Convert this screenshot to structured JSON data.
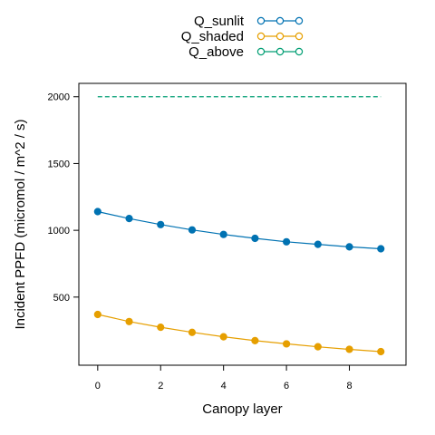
{
  "chart_data": {
    "type": "line",
    "xlabel": "Canopy layer",
    "ylabel": "Incident PPFD (micromol / m^2 / s)",
    "xlim": [
      -0.6,
      9.8
    ],
    "ylim": [
      -10,
      2100
    ],
    "xticks": [
      0,
      2,
      4,
      6,
      8
    ],
    "yticks": [
      500,
      1000,
      1500,
      2000
    ],
    "x": [
      0,
      1,
      2,
      3,
      4,
      5,
      6,
      7,
      8,
      9
    ],
    "series": [
      {
        "name": "Q_sunlit",
        "color": "#0072b2",
        "style": "solid-points",
        "values": [
          1140,
          1088,
          1043,
          1003,
          969,
          940,
          914,
          895,
          876,
          862
        ]
      },
      {
        "name": "Q_shaded",
        "color": "#e69f00",
        "style": "solid-points",
        "values": [
          370,
          317,
          274,
          236,
          203,
          174,
          150,
          128,
          109,
          92
        ]
      },
      {
        "name": "Q_above",
        "color": "#009e73",
        "style": "dashed",
        "values": [
          2000,
          2000,
          2000,
          2000,
          2000,
          2000,
          2000,
          2000,
          2000,
          2000
        ]
      }
    ],
    "legend_placement": "top-center",
    "grid": false
  }
}
